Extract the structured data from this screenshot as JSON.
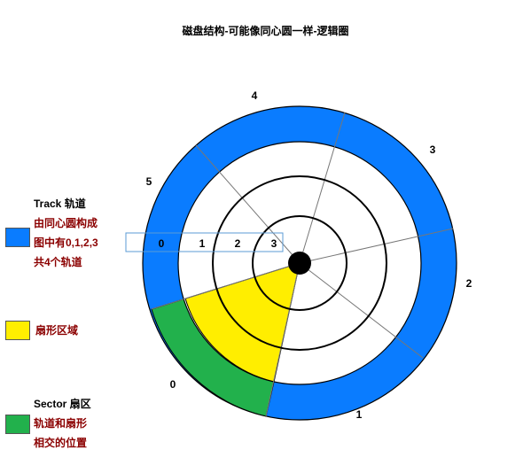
{
  "title": "磁盘结构-可能像同心圆一样-逻辑圈",
  "colors": {
    "track": "#0a7cff",
    "sector": "#ffee00",
    "intersection": "#22b14c",
    "ring_stroke": "#000000",
    "radial_stroke": "#777777",
    "highlight_box": "#5b9bd5"
  },
  "sector_labels": [
    "0",
    "1",
    "2",
    "3",
    "4",
    "5"
  ],
  "track_labels": [
    "0",
    "1",
    "2",
    "3"
  ],
  "legend": {
    "track": {
      "head": "Track 轨道",
      "lines": [
        "由同心圆构成",
        "图中有0,1,2,3",
        "共4个轨道"
      ]
    },
    "sector": {
      "head": "扇形区域"
    },
    "intersection": {
      "head": "Sector 扇区",
      "lines": [
        "轨道和扇形",
        "相交的位置"
      ]
    }
  }
}
